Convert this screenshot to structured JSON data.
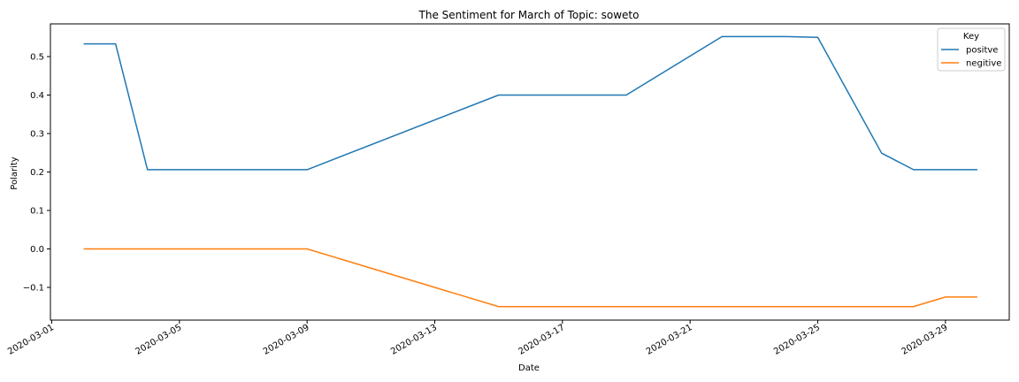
{
  "chart_data": {
    "type": "line",
    "title": "The Sentiment for March of Topic: soweto",
    "xlabel": "Date",
    "ylabel": "Polarity",
    "xlim": [
      "2020-02-29T23:00",
      "2020-03-31T00:00"
    ],
    "ylim": [
      -0.185,
      0.585
    ],
    "x_ticks": [
      "2020-03-01",
      "2020-03-05",
      "2020-03-09",
      "2020-03-13",
      "2020-03-17",
      "2020-03-21",
      "2020-03-25",
      "2020-03-29"
    ],
    "y_ticks": [
      -0.1,
      0.0,
      0.1,
      0.2,
      0.3,
      0.4,
      0.5
    ],
    "y_tick_labels": [
      "−0.1",
      "0.0",
      "0.1",
      "0.2",
      "0.3",
      "0.4",
      "0.5"
    ],
    "x": [
      "2020-03-02",
      "2020-03-03",
      "2020-03-04",
      "2020-03-09",
      "2020-03-15",
      "2020-03-19",
      "2020-03-22",
      "2020-03-24",
      "2020-03-25",
      "2020-03-27",
      "2020-03-28",
      "2020-03-29",
      "2020-03-30"
    ],
    "series": [
      {
        "name": "positve",
        "color": "#1f77b4",
        "x": [
          "2020-03-02",
          "2020-03-03",
          "2020-03-04",
          "2020-03-09",
          "2020-03-15",
          "2020-03-19",
          "2020-03-22",
          "2020-03-24",
          "2020-03-25",
          "2020-03-27",
          "2020-03-28",
          "2020-03-30"
        ],
        "values": [
          0.533,
          0.533,
          0.206,
          0.206,
          0.4,
          0.4,
          0.552,
          0.552,
          0.55,
          0.249,
          0.206,
          0.206
        ]
      },
      {
        "name": "negitive",
        "color": "#ff7f0e",
        "x": [
          "2020-03-02",
          "2020-03-09",
          "2020-03-15",
          "2020-03-28",
          "2020-03-29",
          "2020-03-30"
        ],
        "values": [
          0.0,
          0.0,
          -0.15,
          -0.15,
          -0.125,
          -0.125
        ]
      }
    ],
    "legend": {
      "title": "Key",
      "placement": "top-right"
    },
    "grid": false
  }
}
